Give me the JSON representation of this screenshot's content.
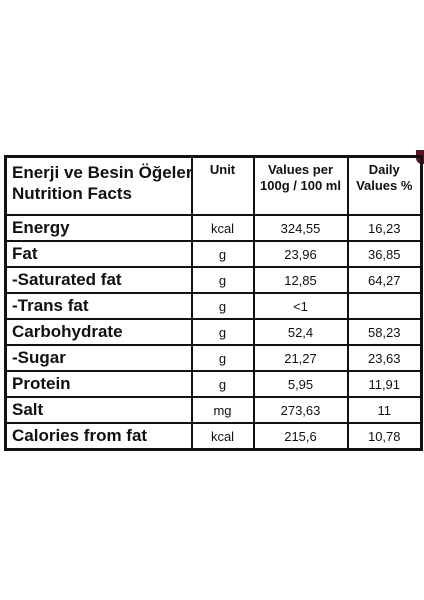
{
  "header": {
    "title_line1": "Enerji ve Besin Öğeleri",
    "title_line2": "Nutrition Facts",
    "unit": "Unit",
    "values_line1": "Values per",
    "values_line2": "100g / 100 ml",
    "daily_line1": "Daily",
    "daily_line2": "Values %"
  },
  "rows": [
    {
      "name": "Energy",
      "unit": "kcal",
      "value": "324,55",
      "daily": "16,23"
    },
    {
      "name": "Fat",
      "unit": "g",
      "value": "23,96",
      "daily": "36,85"
    },
    {
      "name": "-Saturated fat",
      "unit": "g",
      "value": "12,85",
      "daily": "64,27"
    },
    {
      "name": "-Trans fat",
      "unit": "g",
      "value": "<1",
      "daily": ""
    },
    {
      "name": "Carbohydrate",
      "unit": "g",
      "value": "52,4",
      "daily": "58,23"
    },
    {
      "name": "-Sugar",
      "unit": "g",
      "value": "21,27",
      "daily": "23,63"
    },
    {
      "name": "Protein",
      "unit": "g",
      "value": "5,95",
      "daily": "11,91"
    },
    {
      "name": "Salt",
      "unit": "mg",
      "value": "273,63",
      "daily": "11"
    },
    {
      "name": "Calories from fat",
      "unit": "kcal",
      "value": "215,6",
      "daily": "10,78"
    }
  ]
}
